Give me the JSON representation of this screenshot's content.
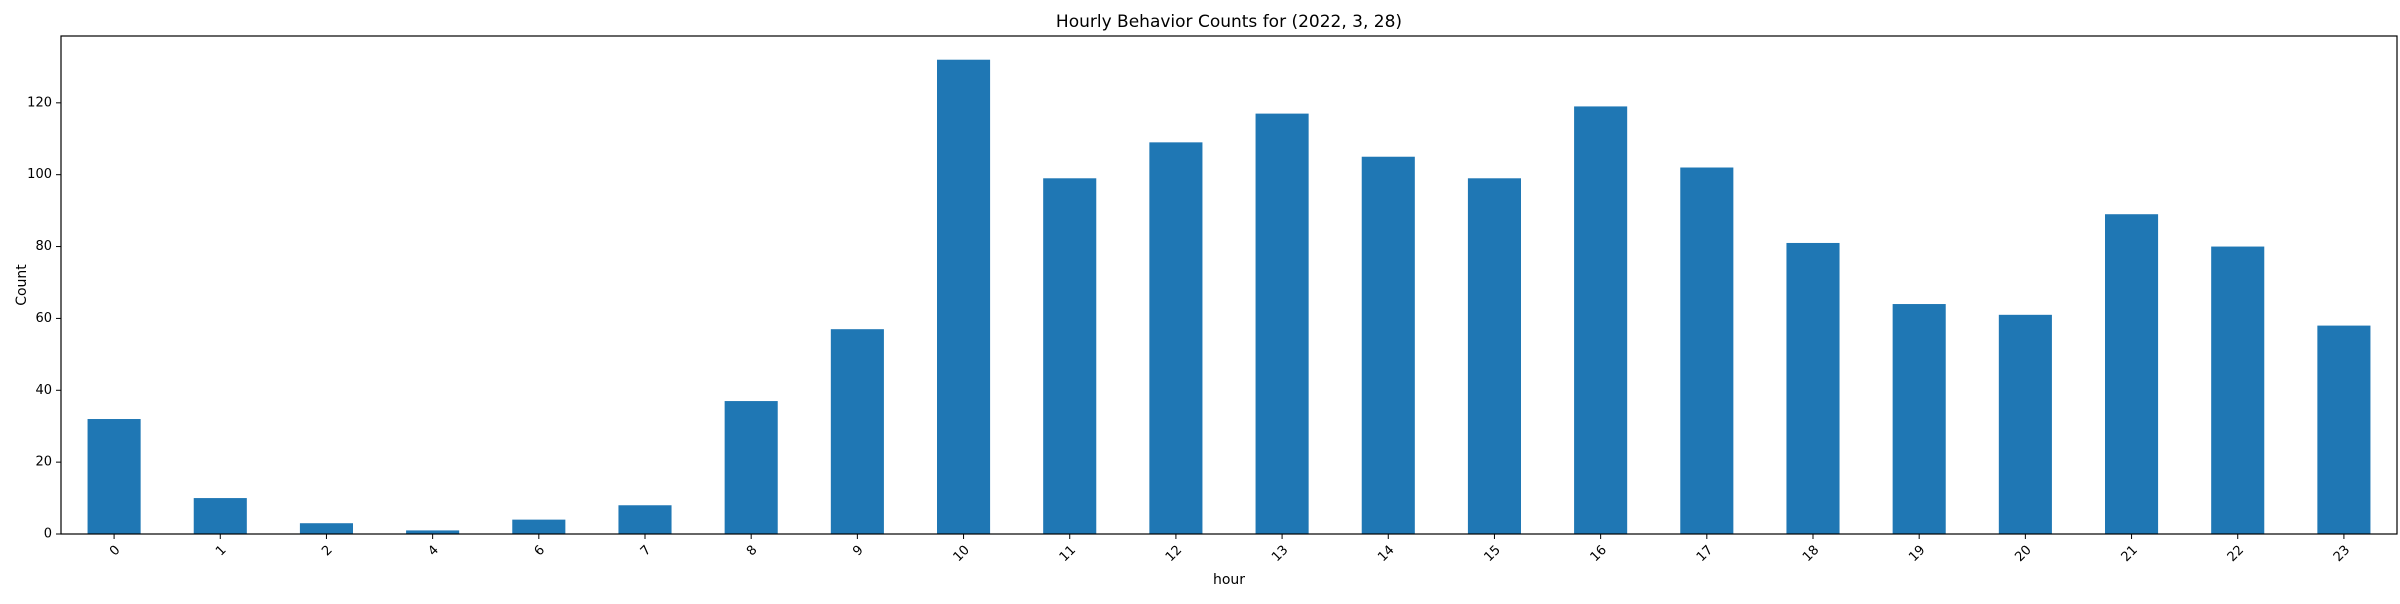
{
  "chart_data": {
    "type": "bar",
    "title": "Hourly Behavior Counts for (2022, 3, 28)",
    "xlabel": "hour",
    "ylabel": "Count",
    "categories": [
      "0",
      "1",
      "2",
      "4",
      "6",
      "7",
      "8",
      "9",
      "10",
      "11",
      "12",
      "13",
      "14",
      "15",
      "16",
      "17",
      "18",
      "19",
      "20",
      "21",
      "22",
      "23"
    ],
    "values": [
      32,
      10,
      3,
      1,
      4,
      8,
      37,
      57,
      132,
      99,
      109,
      117,
      105,
      99,
      119,
      102,
      81,
      64,
      61,
      89,
      80,
      58
    ],
    "ylim": [
      0,
      138.6
    ],
    "yticks": [
      0,
      20,
      40,
      60,
      80,
      100,
      120
    ],
    "bar_color": "#1f77b4",
    "grid": false,
    "legend": "none"
  }
}
